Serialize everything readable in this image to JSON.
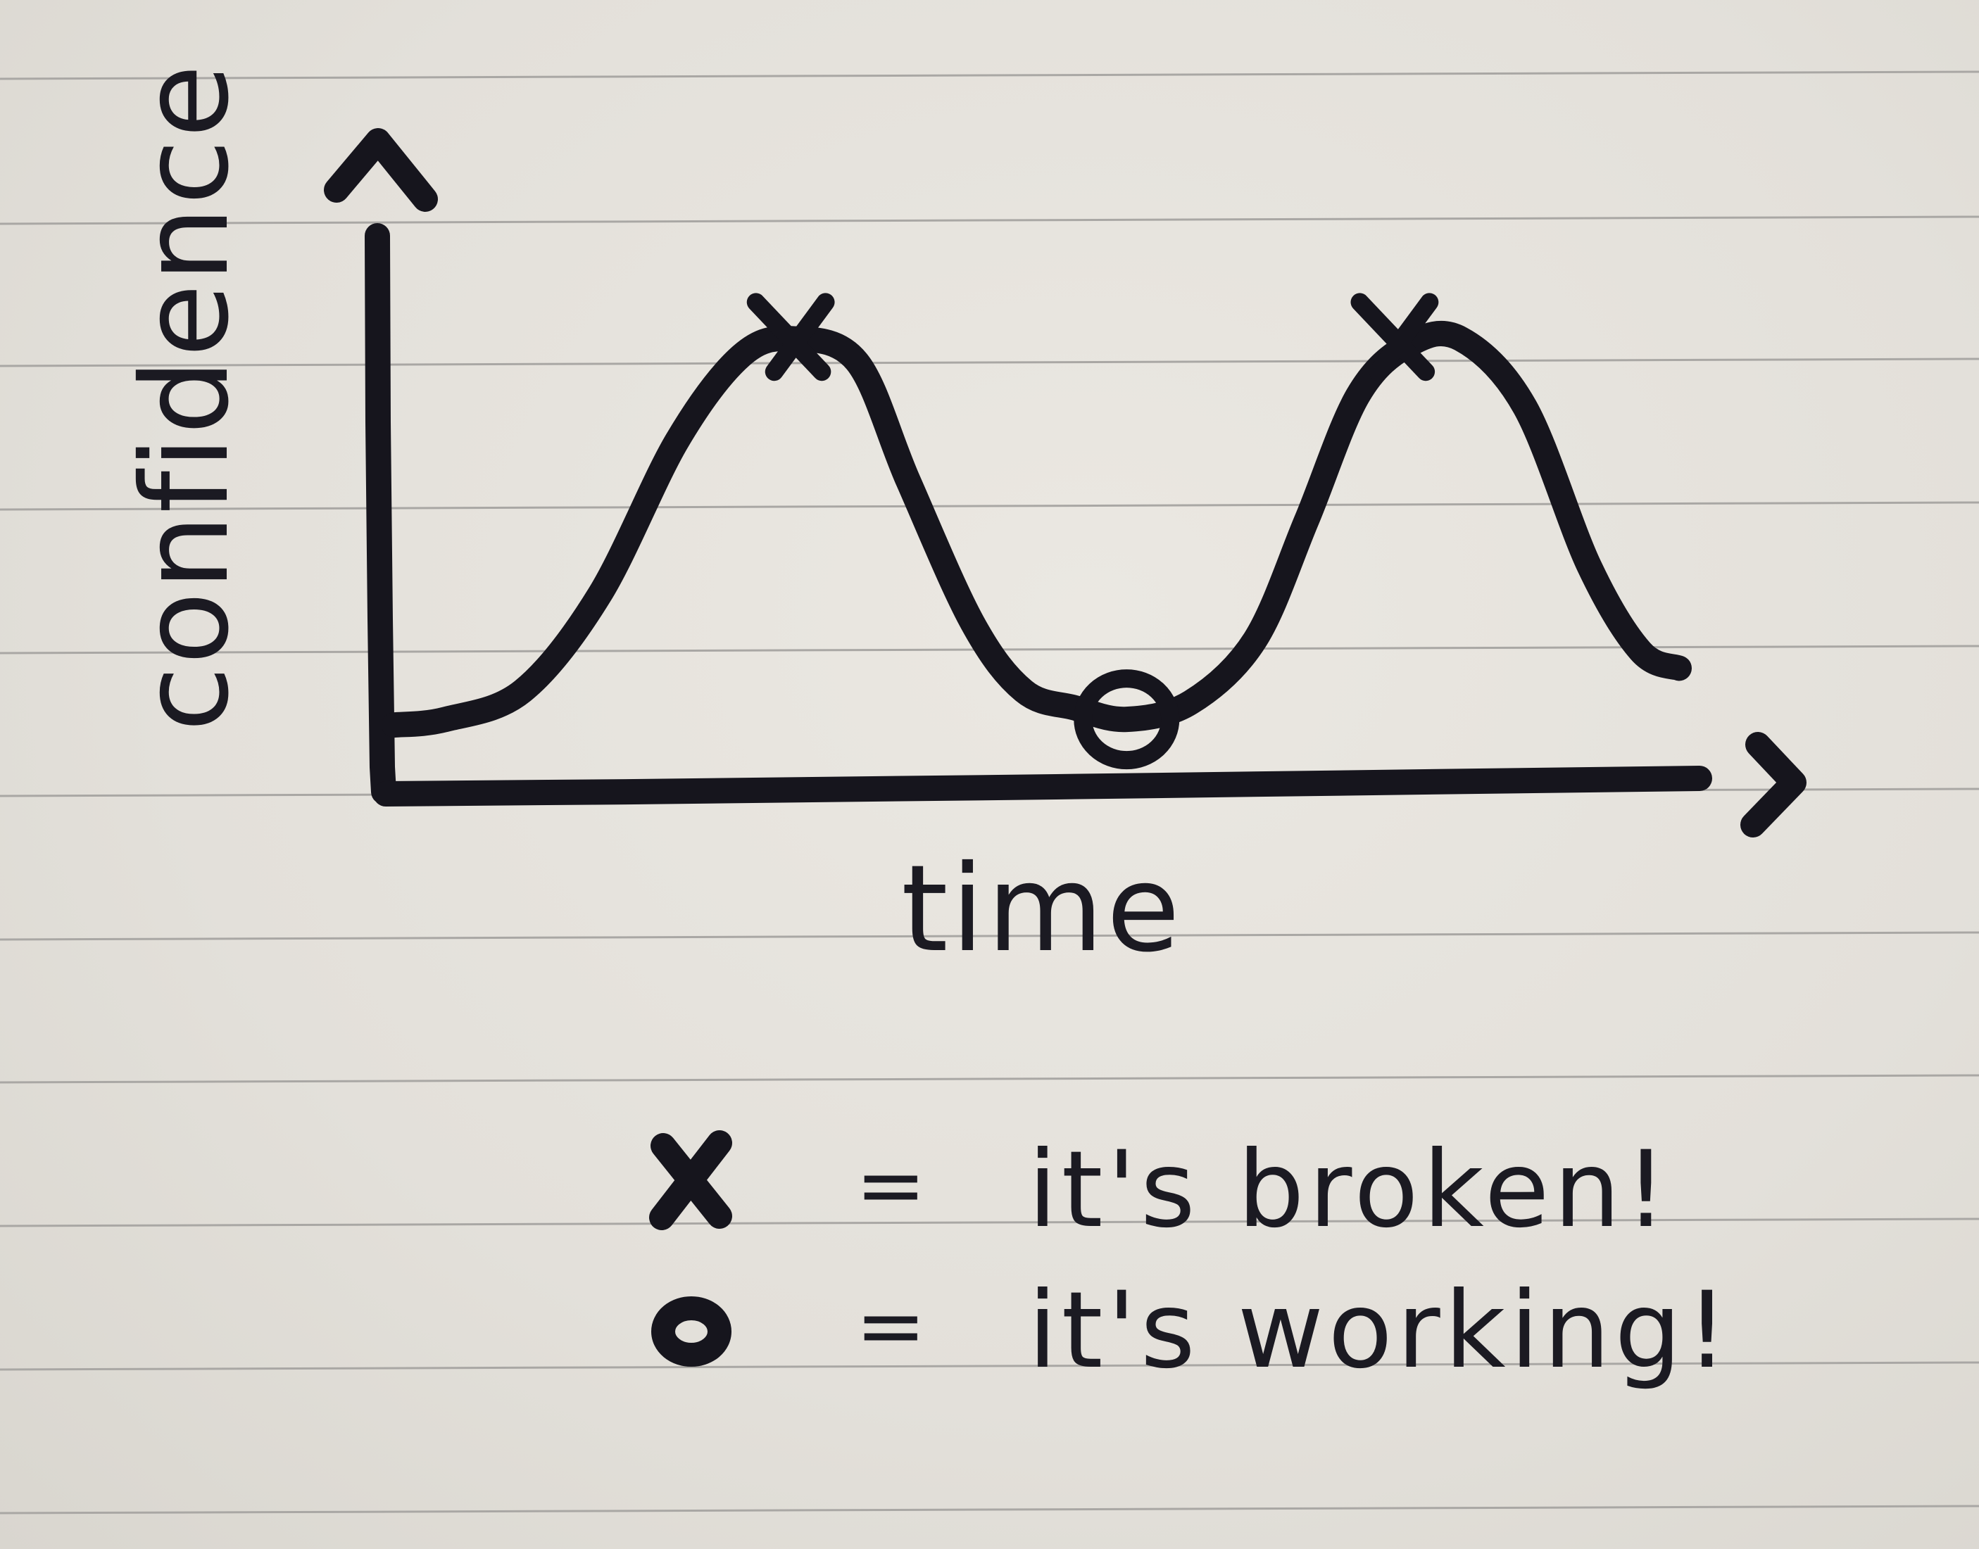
{
  "chart_data": {
    "type": "line",
    "title": "",
    "xlabel": "time",
    "ylabel": "confidence",
    "grid": false,
    "ylim": [
      0,
      1
    ],
    "series": [
      {
        "x": [
          0,
          0.04,
          0.1,
          0.16,
          0.22,
          0.27,
          0.31,
          0.36,
          0.4,
          0.45,
          0.49,
          0.53,
          0.57,
          0.62,
          0.67,
          0.71,
          0.75,
          0.79,
          0.83,
          0.88,
          0.93,
          0.97,
          1.0
        ],
        "values": [
          0.12,
          0.13,
          0.18,
          0.35,
          0.62,
          0.77,
          0.8,
          0.76,
          0.55,
          0.3,
          0.18,
          0.15,
          0.13,
          0.16,
          0.27,
          0.48,
          0.7,
          0.79,
          0.8,
          0.68,
          0.4,
          0.25,
          0.22
        ]
      }
    ],
    "markers": [
      {
        "symbol": "x",
        "x": 0.31,
        "y": 0.8
      },
      {
        "symbol": "o",
        "x": 0.57,
        "y": 0.13
      },
      {
        "symbol": "x",
        "x": 0.78,
        "y": 0.8
      }
    ]
  },
  "legend": {
    "items": [
      {
        "symbol": "x",
        "equals": "=",
        "label": "it's broken!"
      },
      {
        "symbol": "o",
        "equals": "=",
        "label": "it's working!"
      }
    ]
  },
  "colors": {
    "ink": "#16151d",
    "paper": "#e4e1db",
    "rule": "#a9a7a4"
  }
}
